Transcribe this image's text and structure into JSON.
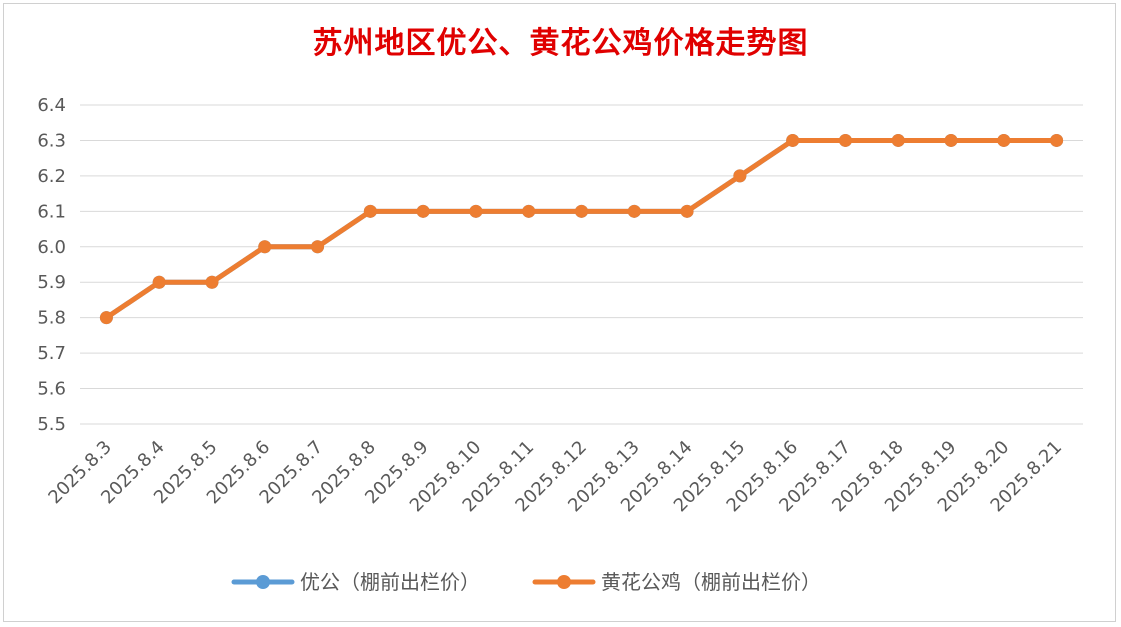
{
  "chart_data": {
    "type": "line",
    "title": "苏州地区优公、黄花公鸡价格走势图",
    "xlabel": "",
    "ylabel": "",
    "categories": [
      "2025.8.3",
      "2025.8.4",
      "2025.8.5",
      "2025.8.6",
      "2025.8.7",
      "2025.8.8",
      "2025.8.9",
      "2025.8.10",
      "2025.8.11",
      "2025.8.12",
      "2025.8.13",
      "2025.8.14",
      "2025.8.15",
      "2025.8.16",
      "2025.8.17",
      "2025.8.18",
      "2025.8.19",
      "2025.8.20",
      "2025.8.21"
    ],
    "ylim": [
      5.5,
      6.4
    ],
    "yticks": [
      "5.5",
      "5.6",
      "5.7",
      "5.8",
      "5.9",
      "6.0",
      "6.1",
      "6.2",
      "6.3",
      "6.4"
    ],
    "grid": true,
    "legend_position": "bottom",
    "series": [
      {
        "name": "优公（棚前出栏价）",
        "color": "#5b9bd5",
        "values": [
          5.8,
          5.9,
          5.9,
          6.0,
          6.0,
          6.1,
          6.1,
          6.1,
          6.1,
          6.1,
          6.1,
          6.1,
          6.2,
          6.3,
          6.3,
          6.3,
          6.3,
          6.3,
          6.3
        ]
      },
      {
        "name": "黄花公鸡（棚前出栏价）",
        "color": "#ed7d31",
        "values": [
          5.8,
          5.9,
          5.9,
          6.0,
          6.0,
          6.1,
          6.1,
          6.1,
          6.1,
          6.1,
          6.1,
          6.1,
          6.2,
          6.3,
          6.3,
          6.3,
          6.3,
          6.3,
          6.3
        ]
      }
    ]
  }
}
